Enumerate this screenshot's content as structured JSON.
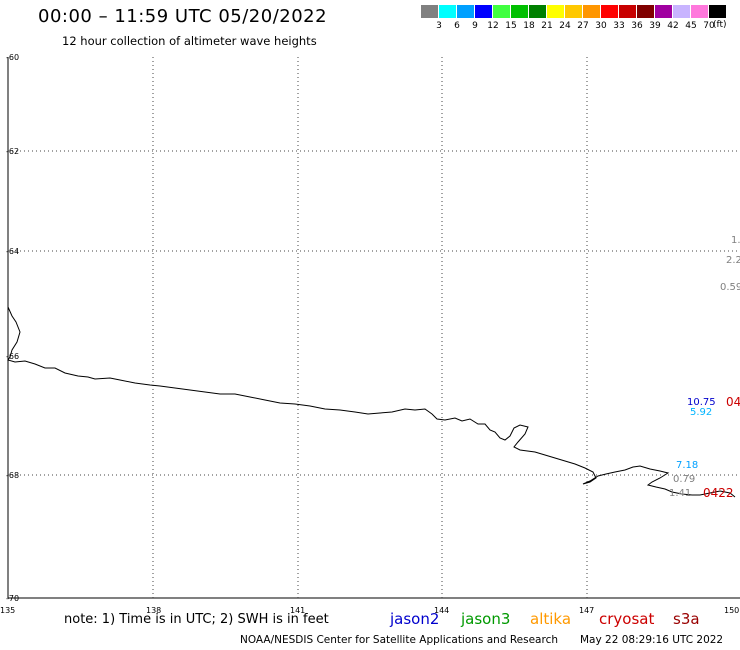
{
  "header": {
    "title": "00:00 – 11:59 UTC 05/20/2022",
    "subtitle": "12 hour collection of altimeter wave heights"
  },
  "legend": {
    "units": "(ft)",
    "colors": [
      "#808080",
      "#00ffff",
      "#00a0ff",
      "#0000ff",
      "#40ff40",
      "#00c000",
      "#008000",
      "#ffff00",
      "#ffc800",
      "#ff9600",
      "#ff0000",
      "#c80000",
      "#800000",
      "#a000a0",
      "#c8b4ff",
      "#ff78dc",
      "#000000"
    ],
    "labels": [
      "3",
      "6",
      "9",
      "12",
      "15",
      "18",
      "21",
      "24",
      "27",
      "30",
      "33",
      "36",
      "39",
      "42",
      "45",
      "70"
    ]
  },
  "axes": {
    "lat_labels": [
      "-60",
      "-62",
      "-64",
      "-66",
      "-68",
      "-70"
    ],
    "lon_labels": [
      "135",
      "138",
      "141",
      "144",
      "147",
      "150"
    ]
  },
  "observations": [
    {
      "text": "1.",
      "color": "#808080"
    },
    {
      "text": "2.2",
      "color": "#808080"
    },
    {
      "text": "0.59",
      "color": "#808080"
    },
    {
      "text": "10.75",
      "color": "#0000cc"
    },
    {
      "text": "5.92",
      "color": "#00b4ff"
    },
    {
      "text": "7.18",
      "color": "#00a0ff"
    },
    {
      "text": "0.79",
      "color": "#808080"
    },
    {
      "text": "1.41",
      "color": "#808080"
    },
    {
      "text": "0422",
      "color": "#cc0000"
    },
    {
      "text": "04",
      "color": "#cc0000"
    }
  ],
  "footer": {
    "note": "note: 1) Time is in UTC; 2) SWH is in feet",
    "satellites": [
      {
        "name": "jason2",
        "color": "#0000cc"
      },
      {
        "name": "jason3",
        "color": "#009900"
      },
      {
        "name": "altika",
        "color": "#ff9900"
      },
      {
        "name": "cryosat",
        "color": "#cc0000"
      },
      {
        "name": "s3a",
        "color": "#990000"
      }
    ],
    "credit": "NOAA/NESDIS Center for Satellite Applications and Research",
    "timestamp": "May 22 08:29:16 UTC 2022"
  }
}
